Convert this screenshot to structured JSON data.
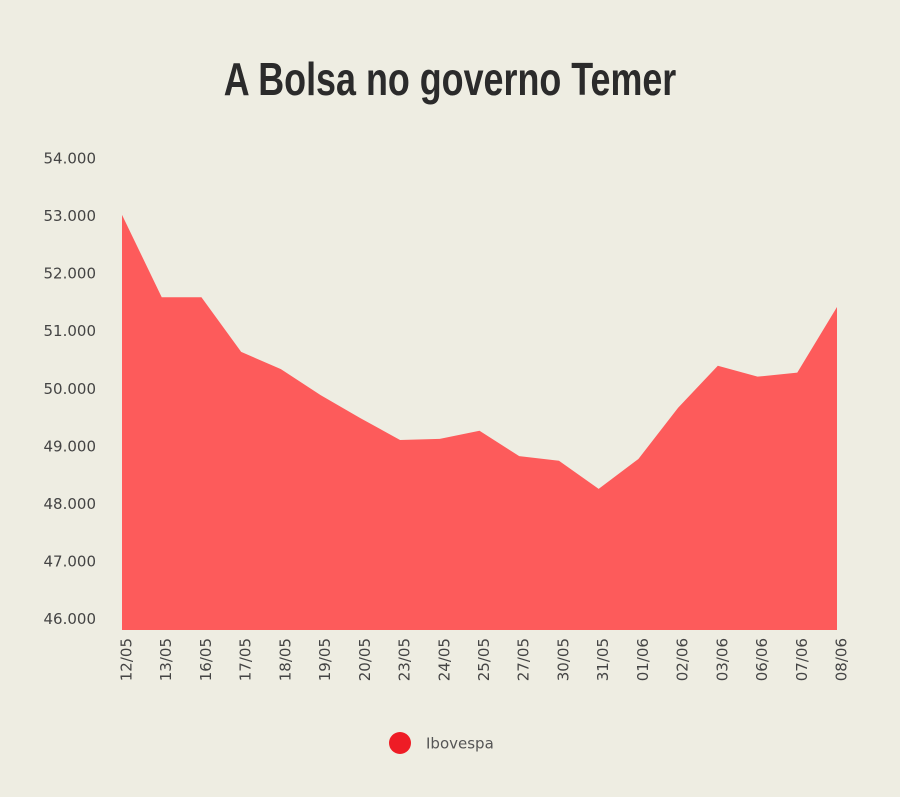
{
  "chart_data": {
    "type": "area",
    "title": "A Bolsa no governo Temer",
    "categories": [
      "12/05",
      "13/05",
      "16/05",
      "17/05",
      "18/05",
      "19/05",
      "20/05",
      "23/05",
      "24/05",
      "25/05",
      "27/05",
      "30/05",
      "31/05",
      "01/06",
      "02/06",
      "03/06",
      "06/06",
      "07/06",
      "08/06"
    ],
    "series": [
      {
        "name": "Ibovespa",
        "color": "#fd5b5b",
        "values": [
          53030,
          51600,
          51600,
          50650,
          50350,
          49900,
          49500,
          49120,
          49140,
          49280,
          48840,
          48760,
          48270,
          48790,
          49680,
          50410,
          50220,
          50290,
          51430
        ]
      }
    ],
    "legend_marker_color": "#ee1c25",
    "ylim": [
      45820,
      54000
    ],
    "yticks": [
      {
        "value": 46000,
        "label": "46.000"
      },
      {
        "value": 47000,
        "label": "47.000"
      },
      {
        "value": 48000,
        "label": "48.000"
      },
      {
        "value": 49000,
        "label": "49.000"
      },
      {
        "value": 50000,
        "label": "50.000"
      },
      {
        "value": 51000,
        "label": "51.000"
      },
      {
        "value": 52000,
        "label": "52.000"
      },
      {
        "value": 53000,
        "label": "53.000"
      },
      {
        "value": 54000,
        "label": "54.000"
      }
    ],
    "grid": false,
    "legend": "bottom"
  }
}
